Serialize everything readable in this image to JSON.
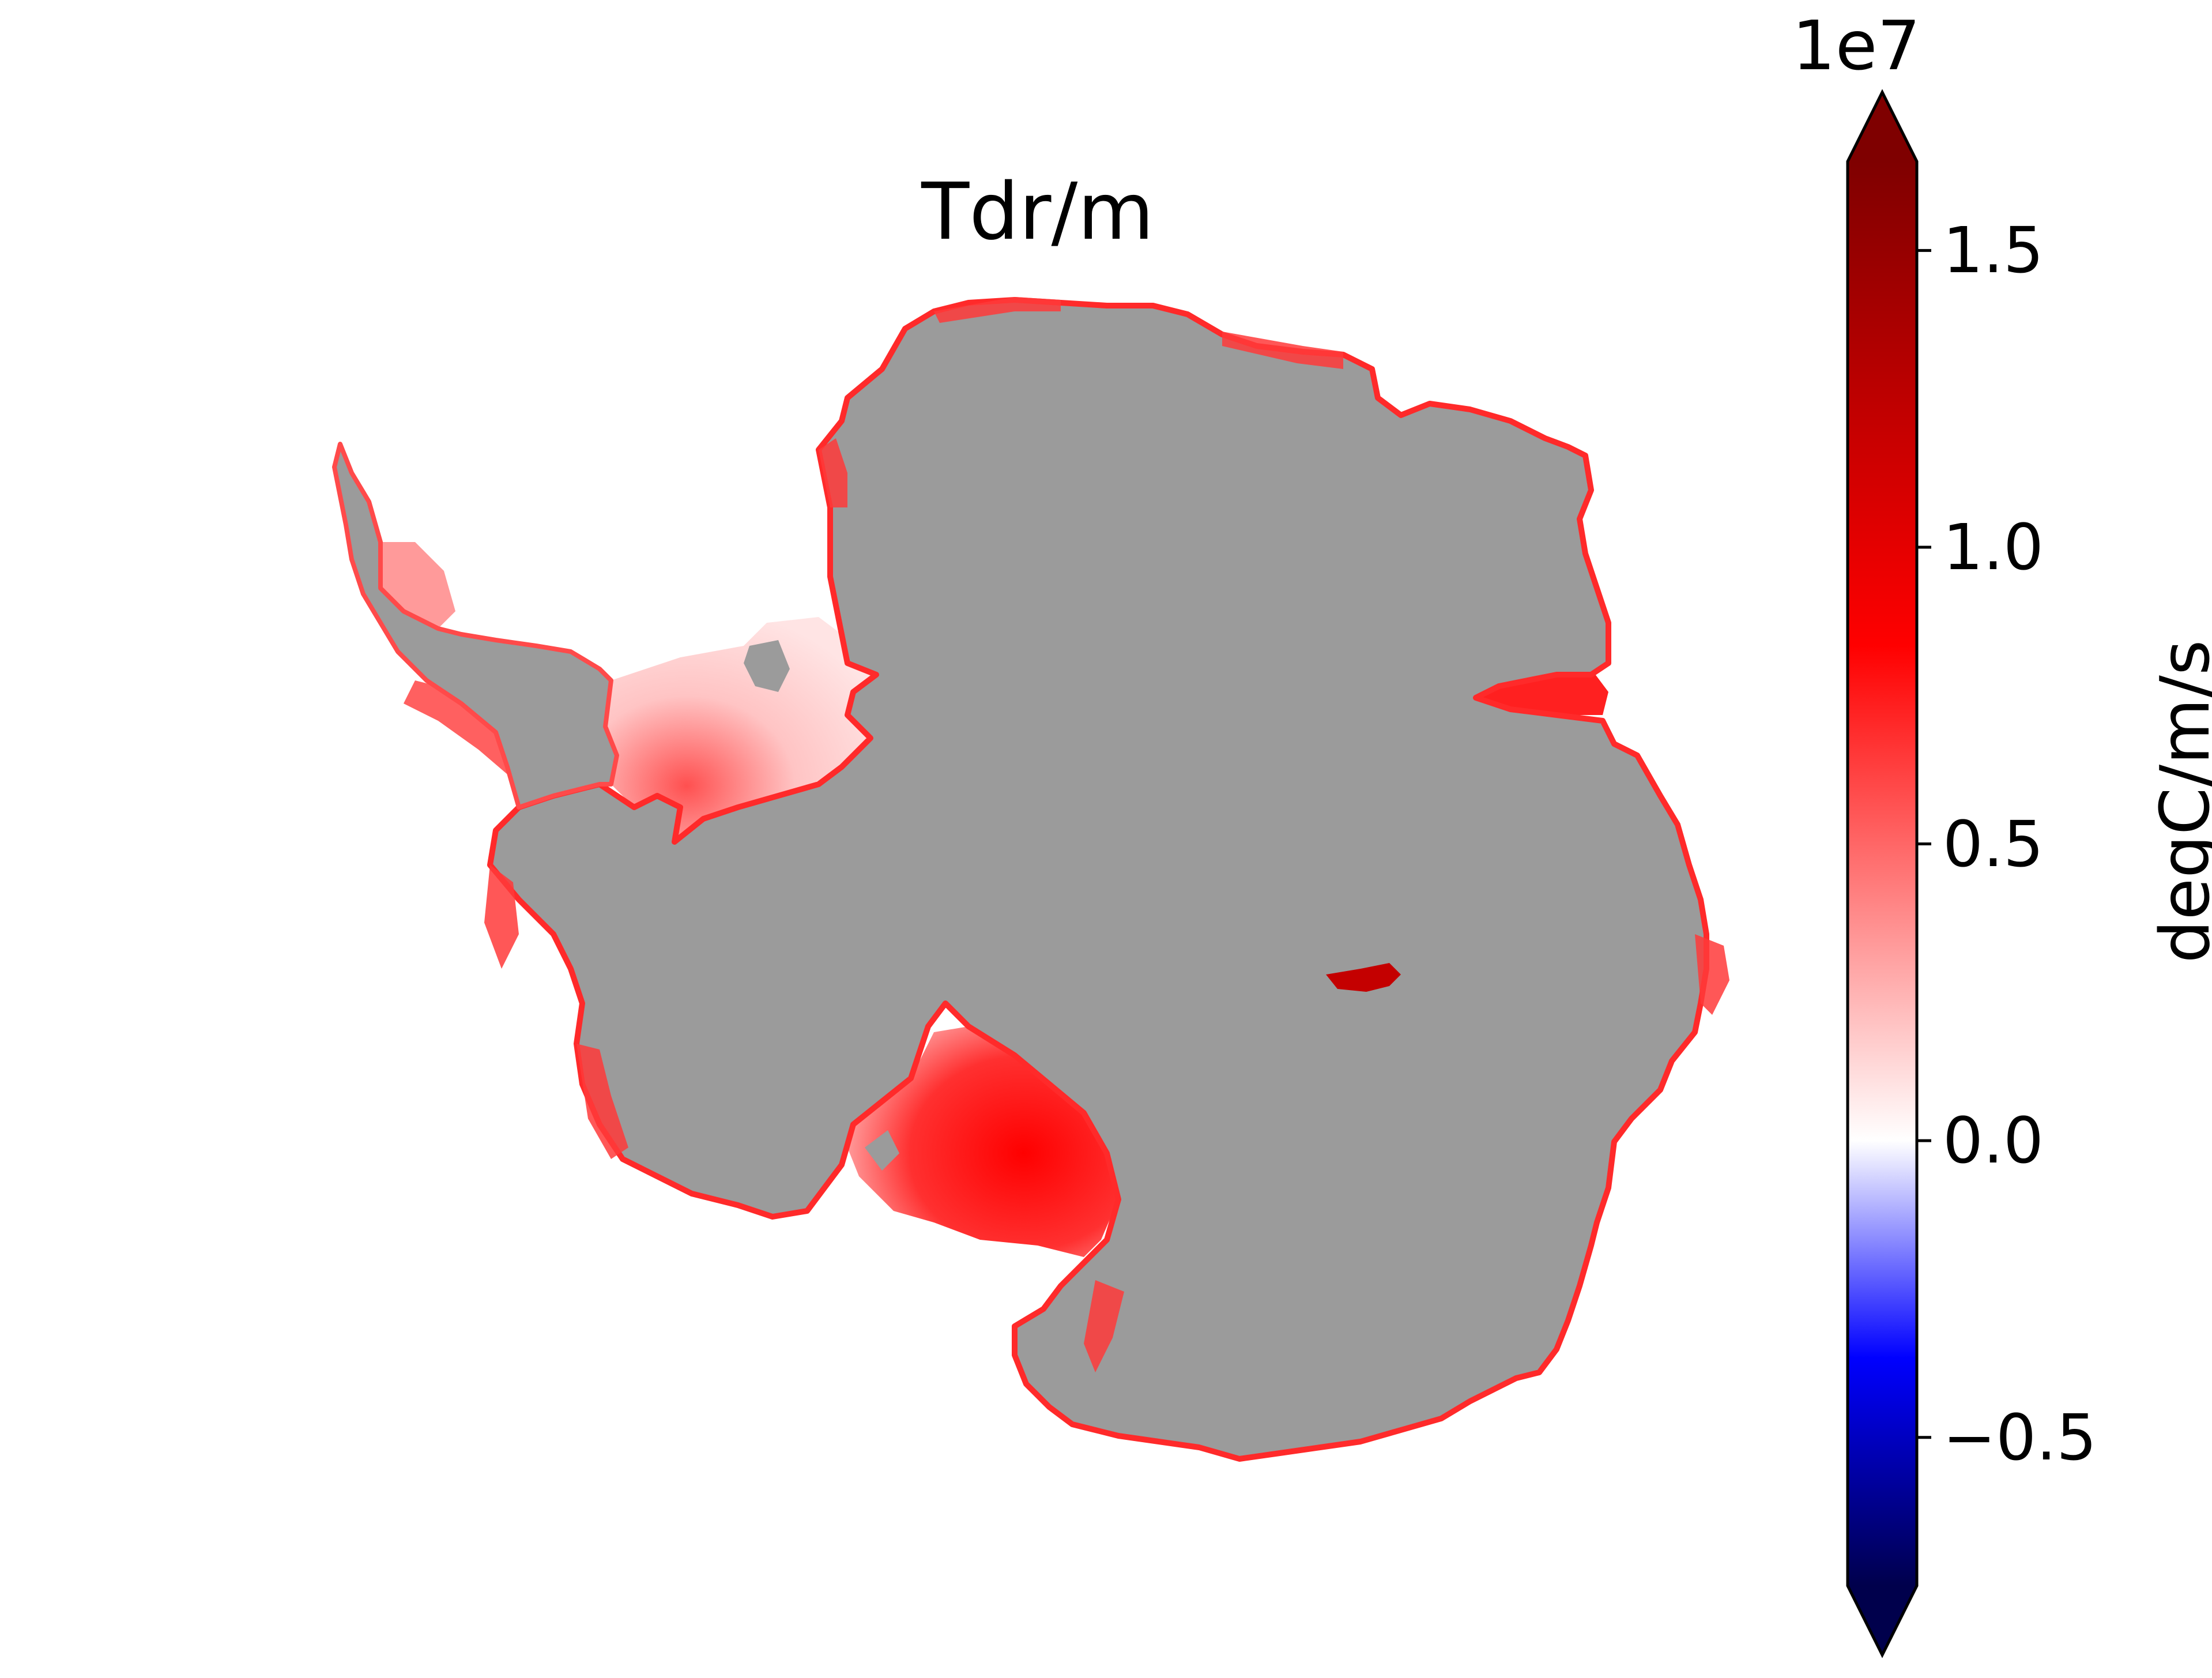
{
  "title": "Tdr/m",
  "colorbar": {
    "label": "degC/m/s",
    "offset_text": "1e7",
    "cmap": "seismic",
    "extend": "both",
    "vmin": -0.75,
    "vmax": 1.65,
    "ticks": [
      {
        "value": 1.5,
        "label": "1.5"
      },
      {
        "value": 1.0,
        "label": "1.0"
      },
      {
        "value": 0.5,
        "label": "0.5"
      },
      {
        "value": 0.0,
        "label": "0.0"
      },
      {
        "value": -0.5,
        "label": "−0.5"
      }
    ],
    "colors": {
      "low_end": "#00004c",
      "blue": "#0000ff",
      "white": "#ffffff",
      "red": "#ff0000",
      "high_end": "#7f0000"
    }
  },
  "map": {
    "region": "Antarctica",
    "land_color": "#9b9b9b",
    "background": "#ffffff",
    "values_shown": "positive (red) along ice-shelf margins; strongest over Ross Ice Shelf and Amery Ice Shelf"
  }
}
